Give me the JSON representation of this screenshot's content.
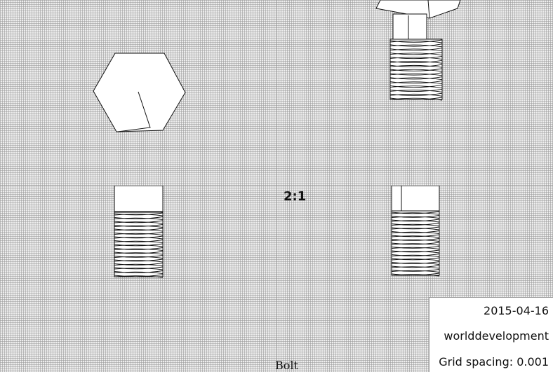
{
  "drawing": {
    "title": "Bolt",
    "scale": "2:1",
    "date": "2015-04-16",
    "author": "worlddevelopment",
    "grid_spacing": "Grid spacing: 0.001"
  },
  "colors": {
    "grid_background": "#eeeeee",
    "grid_line": "#969696",
    "part_fill": "#ffffff",
    "part_stroke": "#111111"
  },
  "views": [
    {
      "id": "top-view",
      "shows": "hexagonal head"
    },
    {
      "id": "isometric-view",
      "shows": "head and threaded shank"
    },
    {
      "id": "front-view",
      "shows": "threaded shank"
    },
    {
      "id": "side-view",
      "shows": "threaded shank"
    }
  ]
}
